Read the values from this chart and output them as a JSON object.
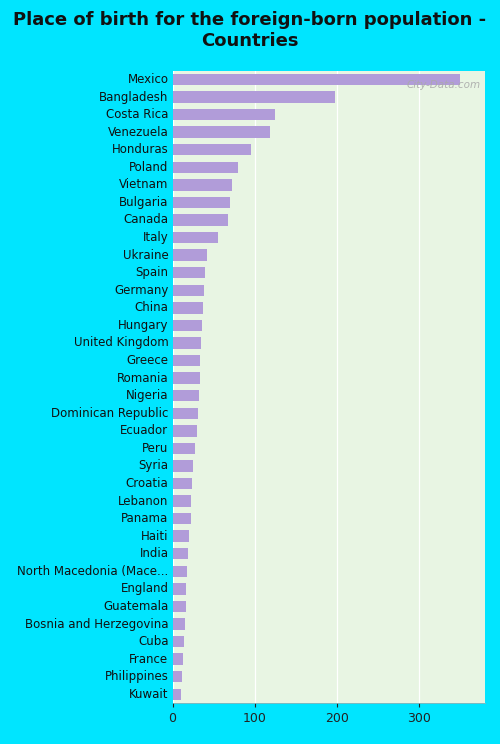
{
  "title": "Place of birth for the foreign-born population -\nCountries",
  "categories": [
    "Mexico",
    "Bangladesh",
    "Costa Rica",
    "Venezuela",
    "Honduras",
    "Poland",
    "Vietnam",
    "Bulgaria",
    "Canada",
    "Italy",
    "Ukraine",
    "Spain",
    "Germany",
    "China",
    "Hungary",
    "United Kingdom",
    "Greece",
    "Romania",
    "Nigeria",
    "Dominican Republic",
    "Ecuador",
    "Peru",
    "Syria",
    "Croatia",
    "Lebanon",
    "Panama",
    "Haiti",
    "India",
    "North Macedonia (Mace...",
    "England",
    "Guatemala",
    "Bosnia and Herzegovina",
    "Cuba",
    "France",
    "Philippines",
    "Kuwait"
  ],
  "values": [
    350,
    197,
    125,
    118,
    95,
    80,
    72,
    70,
    68,
    55,
    42,
    40,
    38,
    37,
    36,
    35,
    34,
    33,
    32,
    31,
    30,
    27,
    25,
    24,
    23,
    22,
    20,
    19,
    18,
    17,
    16,
    15,
    14,
    13,
    12,
    10
  ],
  "bar_color": "#b19cd9",
  "plot_bg_top": "#eef5ee",
  "plot_bg_bottom": "#e8f5e3",
  "figure_bg": "#00e5ff",
  "title_fontsize": 13,
  "label_fontsize": 8.5,
  "tick_fontsize": 9,
  "xlim": [
    0,
    380
  ],
  "watermark": "City-Data.com"
}
